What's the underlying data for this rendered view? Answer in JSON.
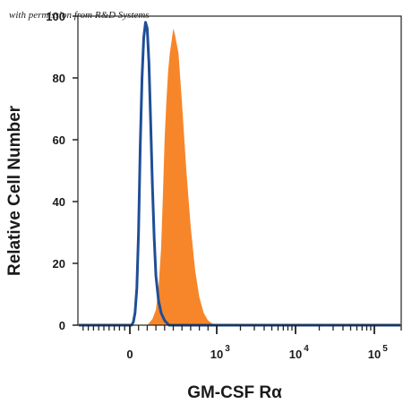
{
  "watermark": "with permission from R&D Systems",
  "chart_data": {
    "type": "area",
    "title": "",
    "xlabel": "GM-CSF Rα",
    "ylabel": "Relative Cell Number",
    "xscale": "biexponential",
    "ylim": [
      0,
      100
    ],
    "yticks": [
      0,
      20,
      40,
      60,
      80,
      100
    ],
    "xticks": [
      {
        "value": 0,
        "label": "0"
      },
      {
        "value": 1000,
        "label": "10",
        "exp": "3"
      },
      {
        "value": 10000,
        "label": "10",
        "exp": "4"
      },
      {
        "value": 100000,
        "label": "10",
        "exp": "5"
      }
    ],
    "grid": false,
    "legend": "none",
    "series": [
      {
        "style": "filled",
        "color": "#F7862A",
        "x": [
          200,
          260,
          300,
          330,
          360,
          380,
          400,
          420,
          440,
          460,
          480,
          500,
          520,
          560,
          600,
          650,
          700,
          750,
          800,
          850,
          900,
          950,
          1000
        ],
        "y": [
          0,
          2,
          5,
          12,
          25,
          42,
          60,
          72,
          82,
          88,
          92,
          96,
          94,
          88,
          72,
          50,
          32,
          18,
          9,
          4,
          1.5,
          0.5,
          0
        ]
      },
      {
        "style": "outline",
        "color": "#1F4E96",
        "x": [
          20,
          40,
          60,
          80,
          100,
          120,
          140,
          160,
          180,
          200,
          220,
          240,
          260,
          280,
          300,
          330,
          360,
          400,
          450
        ],
        "y": [
          0,
          1,
          4,
          12,
          30,
          58,
          80,
          93,
          98,
          96,
          85,
          65,
          45,
          28,
          16,
          8,
          4,
          1.5,
          0
        ]
      }
    ]
  }
}
